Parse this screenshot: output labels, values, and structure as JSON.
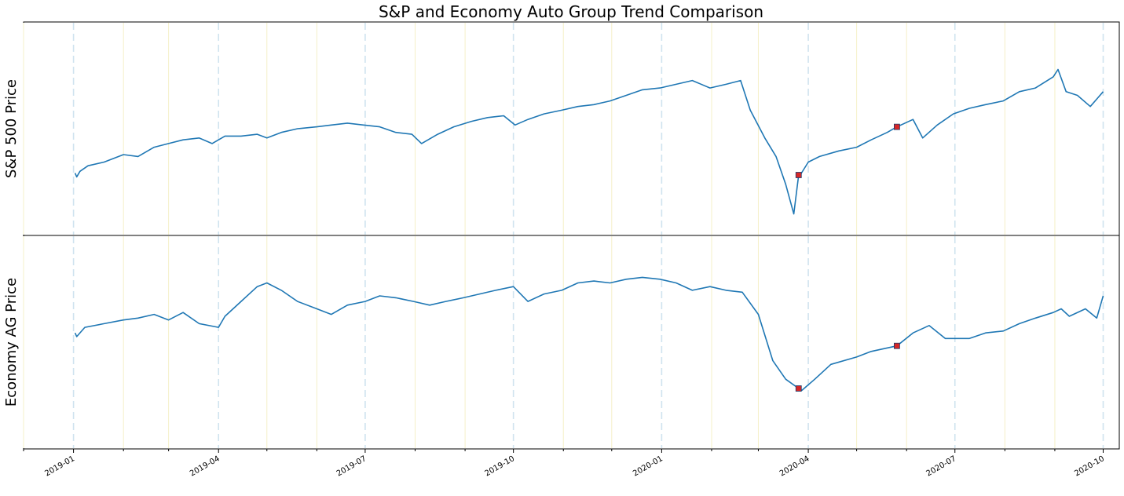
{
  "chart_data": {
    "type": "line",
    "title": "S&P and Economy Auto Group Trend Comparison",
    "xlabel": "",
    "x_range": [
      "2018-12-01",
      "2020-10-11"
    ],
    "x_ticks": [
      "2019-01",
      "2019-04",
      "2019-07",
      "2019-10",
      "2020-01",
      "2020-04",
      "2020-07",
      "2020-10"
    ],
    "grid": {
      "quarter_lines": true,
      "quarter_line_color": "#cfe3ef",
      "month_lines": true,
      "month_line_color": "#f5f0c8"
    },
    "line_color": "#1f77b4",
    "marker_color": "#d62728",
    "panels": [
      {
        "ylabel": "S&P 500 Price",
        "y_tick_labels": "hidden",
        "points": [
          [
            "2019-01-02",
            0.26
          ],
          [
            "2019-01-03",
            0.24
          ],
          [
            "2019-01-05",
            0.27
          ],
          [
            "2019-01-10",
            0.3
          ],
          [
            "2019-01-20",
            0.32
          ],
          [
            "2019-02-01",
            0.36
          ],
          [
            "2019-02-10",
            0.35
          ],
          [
            "2019-02-20",
            0.4
          ],
          [
            "2019-03-01",
            0.42
          ],
          [
            "2019-03-10",
            0.44
          ],
          [
            "2019-03-20",
            0.45
          ],
          [
            "2019-03-28",
            0.42
          ],
          [
            "2019-04-05",
            0.46
          ],
          [
            "2019-04-15",
            0.46
          ],
          [
            "2019-04-25",
            0.47
          ],
          [
            "2019-05-01",
            0.45
          ],
          [
            "2019-05-10",
            0.48
          ],
          [
            "2019-05-20",
            0.5
          ],
          [
            "2019-06-01",
            0.51
          ],
          [
            "2019-06-10",
            0.52
          ],
          [
            "2019-06-20",
            0.53
          ],
          [
            "2019-06-30",
            0.52
          ],
          [
            "2019-07-10",
            0.51
          ],
          [
            "2019-07-20",
            0.48
          ],
          [
            "2019-07-30",
            0.47
          ],
          [
            "2019-08-05",
            0.42
          ],
          [
            "2019-08-15",
            0.47
          ],
          [
            "2019-08-25",
            0.51
          ],
          [
            "2019-09-05",
            0.54
          ],
          [
            "2019-09-15",
            0.56
          ],
          [
            "2019-09-25",
            0.57
          ],
          [
            "2019-10-02",
            0.52
          ],
          [
            "2019-10-10",
            0.55
          ],
          [
            "2019-10-20",
            0.58
          ],
          [
            "2019-10-31",
            0.6
          ],
          [
            "2019-11-10",
            0.62
          ],
          [
            "2019-11-20",
            0.63
          ],
          [
            "2019-11-30",
            0.65
          ],
          [
            "2019-12-10",
            0.68
          ],
          [
            "2019-12-20",
            0.71
          ],
          [
            "2019-12-31",
            0.72
          ],
          [
            "2020-01-10",
            0.74
          ],
          [
            "2020-01-20",
            0.76
          ],
          [
            "2020-01-31",
            0.72
          ],
          [
            "2020-02-10",
            0.74
          ],
          [
            "2020-02-19",
            0.76
          ],
          [
            "2020-02-25",
            0.6
          ],
          [
            "2020-03-05",
            0.45
          ],
          [
            "2020-03-12",
            0.35
          ],
          [
            "2020-03-18",
            0.2
          ],
          [
            "2020-03-23",
            0.04
          ],
          [
            "2020-03-26",
            0.25
          ],
          [
            "2020-03-27",
            0.25
          ],
          [
            "2020-04-01",
            0.32
          ],
          [
            "2020-04-08",
            0.35
          ],
          [
            "2020-04-20",
            0.38
          ],
          [
            "2020-05-01",
            0.4
          ],
          [
            "2020-05-10",
            0.44
          ],
          [
            "2020-05-20",
            0.48
          ],
          [
            "2020-05-26",
            0.51
          ],
          [
            "2020-06-05",
            0.55
          ],
          [
            "2020-06-11",
            0.45
          ],
          [
            "2020-06-20",
            0.52
          ],
          [
            "2020-06-30",
            0.58
          ],
          [
            "2020-07-10",
            0.61
          ],
          [
            "2020-07-20",
            0.63
          ],
          [
            "2020-07-31",
            0.65
          ],
          [
            "2020-08-10",
            0.7
          ],
          [
            "2020-08-20",
            0.72
          ],
          [
            "2020-08-31",
            0.78
          ],
          [
            "2020-09-03",
            0.82
          ],
          [
            "2020-09-08",
            0.7
          ],
          [
            "2020-09-15",
            0.68
          ],
          [
            "2020-09-23",
            0.62
          ],
          [
            "2020-10-01",
            0.7
          ]
        ],
        "markers": [
          [
            "2020-03-26",
            0.25
          ],
          [
            "2020-05-26",
            0.51
          ]
        ]
      },
      {
        "ylabel": "Economy AG Price",
        "y_tick_labels": "hidden",
        "points": [
          [
            "2019-01-02",
            0.55
          ],
          [
            "2019-01-03",
            0.53
          ],
          [
            "2019-01-08",
            0.58
          ],
          [
            "2019-01-20",
            0.6
          ],
          [
            "2019-02-01",
            0.62
          ],
          [
            "2019-02-10",
            0.63
          ],
          [
            "2019-02-20",
            0.65
          ],
          [
            "2019-03-01",
            0.62
          ],
          [
            "2019-03-10",
            0.66
          ],
          [
            "2019-03-20",
            0.6
          ],
          [
            "2019-04-01",
            0.58
          ],
          [
            "2019-04-05",
            0.64
          ],
          [
            "2019-04-15",
            0.72
          ],
          [
            "2019-04-25",
            0.8
          ],
          [
            "2019-05-01",
            0.82
          ],
          [
            "2019-05-10",
            0.78
          ],
          [
            "2019-05-20",
            0.72
          ],
          [
            "2019-06-01",
            0.68
          ],
          [
            "2019-06-10",
            0.65
          ],
          [
            "2019-06-20",
            0.7
          ],
          [
            "2019-07-01",
            0.72
          ],
          [
            "2019-07-10",
            0.75
          ],
          [
            "2019-07-20",
            0.74
          ],
          [
            "2019-07-31",
            0.72
          ],
          [
            "2019-08-10",
            0.7
          ],
          [
            "2019-08-20",
            0.72
          ],
          [
            "2019-08-31",
            0.74
          ],
          [
            "2019-09-10",
            0.76
          ],
          [
            "2019-09-20",
            0.78
          ],
          [
            "2019-10-01",
            0.8
          ],
          [
            "2019-10-10",
            0.72
          ],
          [
            "2019-10-20",
            0.76
          ],
          [
            "2019-10-31",
            0.78
          ],
          [
            "2019-11-10",
            0.82
          ],
          [
            "2019-11-20",
            0.83
          ],
          [
            "2019-11-30",
            0.82
          ],
          [
            "2019-12-10",
            0.84
          ],
          [
            "2019-12-20",
            0.85
          ],
          [
            "2019-12-31",
            0.84
          ],
          [
            "2020-01-10",
            0.82
          ],
          [
            "2020-01-20",
            0.78
          ],
          [
            "2020-01-31",
            0.8
          ],
          [
            "2020-02-10",
            0.78
          ],
          [
            "2020-02-20",
            0.77
          ],
          [
            "2020-03-01",
            0.65
          ],
          [
            "2020-03-10",
            0.4
          ],
          [
            "2020-03-18",
            0.3
          ],
          [
            "2020-03-26",
            0.25
          ],
          [
            "2020-03-28",
            0.24
          ],
          [
            "2020-04-05",
            0.3
          ],
          [
            "2020-04-15",
            0.38
          ],
          [
            "2020-05-01",
            0.42
          ],
          [
            "2020-05-10",
            0.45
          ],
          [
            "2020-05-26",
            0.48
          ],
          [
            "2020-06-05",
            0.55
          ],
          [
            "2020-06-15",
            0.59
          ],
          [
            "2020-06-25",
            0.52
          ],
          [
            "2020-07-10",
            0.52
          ],
          [
            "2020-07-20",
            0.55
          ],
          [
            "2020-07-31",
            0.56
          ],
          [
            "2020-08-10",
            0.6
          ],
          [
            "2020-08-20",
            0.63
          ],
          [
            "2020-08-31",
            0.66
          ],
          [
            "2020-09-05",
            0.68
          ],
          [
            "2020-09-10",
            0.64
          ],
          [
            "2020-09-20",
            0.68
          ],
          [
            "2020-09-27",
            0.63
          ],
          [
            "2020-10-01",
            0.75
          ]
        ],
        "markers": [
          [
            "2020-03-26",
            0.25
          ],
          [
            "2020-05-26",
            0.48
          ]
        ]
      }
    ]
  }
}
